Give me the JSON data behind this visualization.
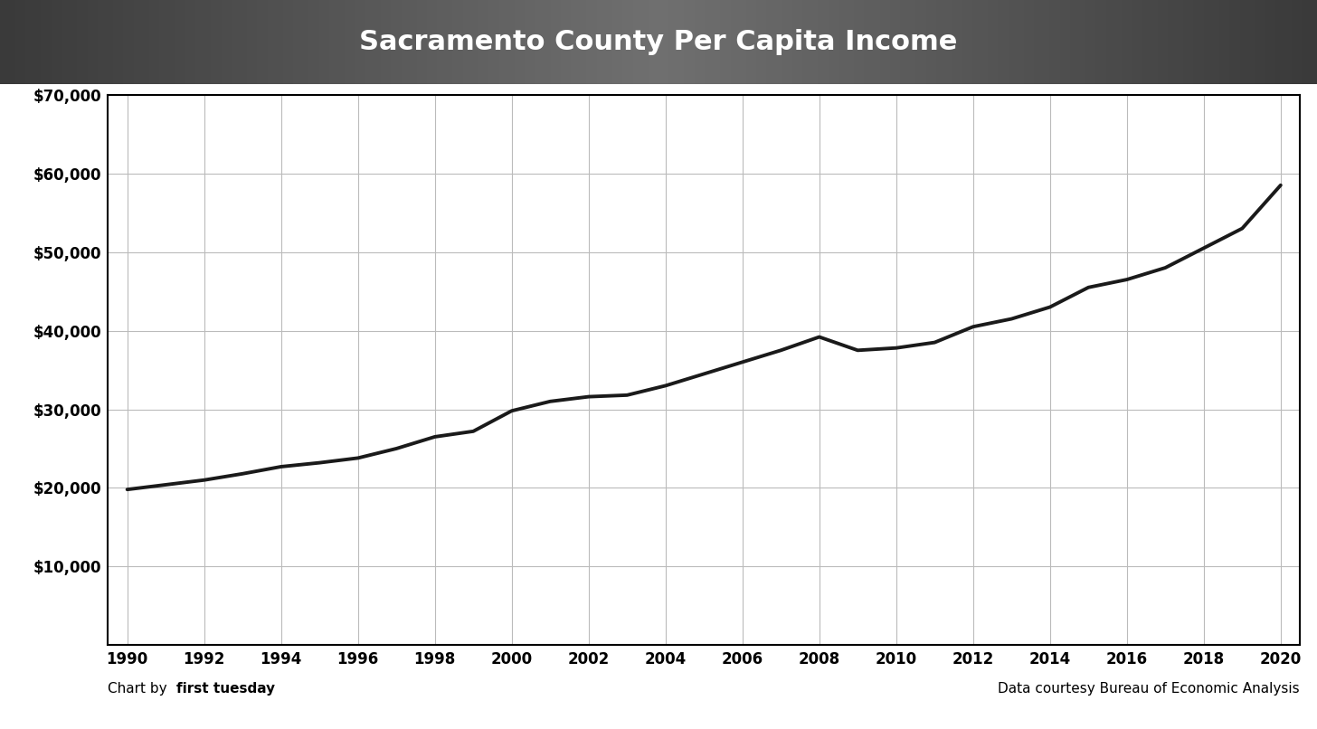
{
  "title": "Sacramento County Per Capita Income",
  "title_bg_gradient_left": "#4a4a4a",
  "title_bg_gradient_center": "#6e6e6e",
  "title_text_color": "#ffffff",
  "line_color": "#1a1a1a",
  "line_width": 2.8,
  "grid_color": "#bbbbbb",
  "background_color": "#ffffff",
  "plot_bg_color": "#ffffff",
  "border_color": "#000000",
  "ylim": [
    0,
    70000
  ],
  "ytick_step": 10000,
  "years": [
    1990,
    1991,
    1992,
    1993,
    1994,
    1995,
    1996,
    1997,
    1998,
    1999,
    2000,
    2001,
    2002,
    2003,
    2004,
    2005,
    2006,
    2007,
    2008,
    2009,
    2010,
    2011,
    2012,
    2013,
    2014,
    2015,
    2016,
    2017,
    2018,
    2019,
    2020
  ],
  "values": [
    19800,
    20400,
    21000,
    21800,
    22700,
    23200,
    23800,
    25000,
    26500,
    27200,
    29800,
    31000,
    31600,
    31800,
    33000,
    34500,
    36000,
    37500,
    39200,
    37500,
    37800,
    38500,
    40500,
    41500,
    43000,
    45500,
    46500,
    48000,
    50500,
    53000,
    58500
  ],
  "footer_left": "Chart by ",
  "footer_left_bold": "first tuesday",
  "footer_right": "Data courtesy Bureau of Economic Analysis",
  "xtick_years": [
    1990,
    1992,
    1994,
    1996,
    1998,
    2000,
    2002,
    2004,
    2006,
    2008,
    2010,
    2012,
    2014,
    2016,
    2018,
    2020
  ],
  "title_fontsize": 22,
  "tick_fontsize": 12,
  "footer_fontsize": 11
}
